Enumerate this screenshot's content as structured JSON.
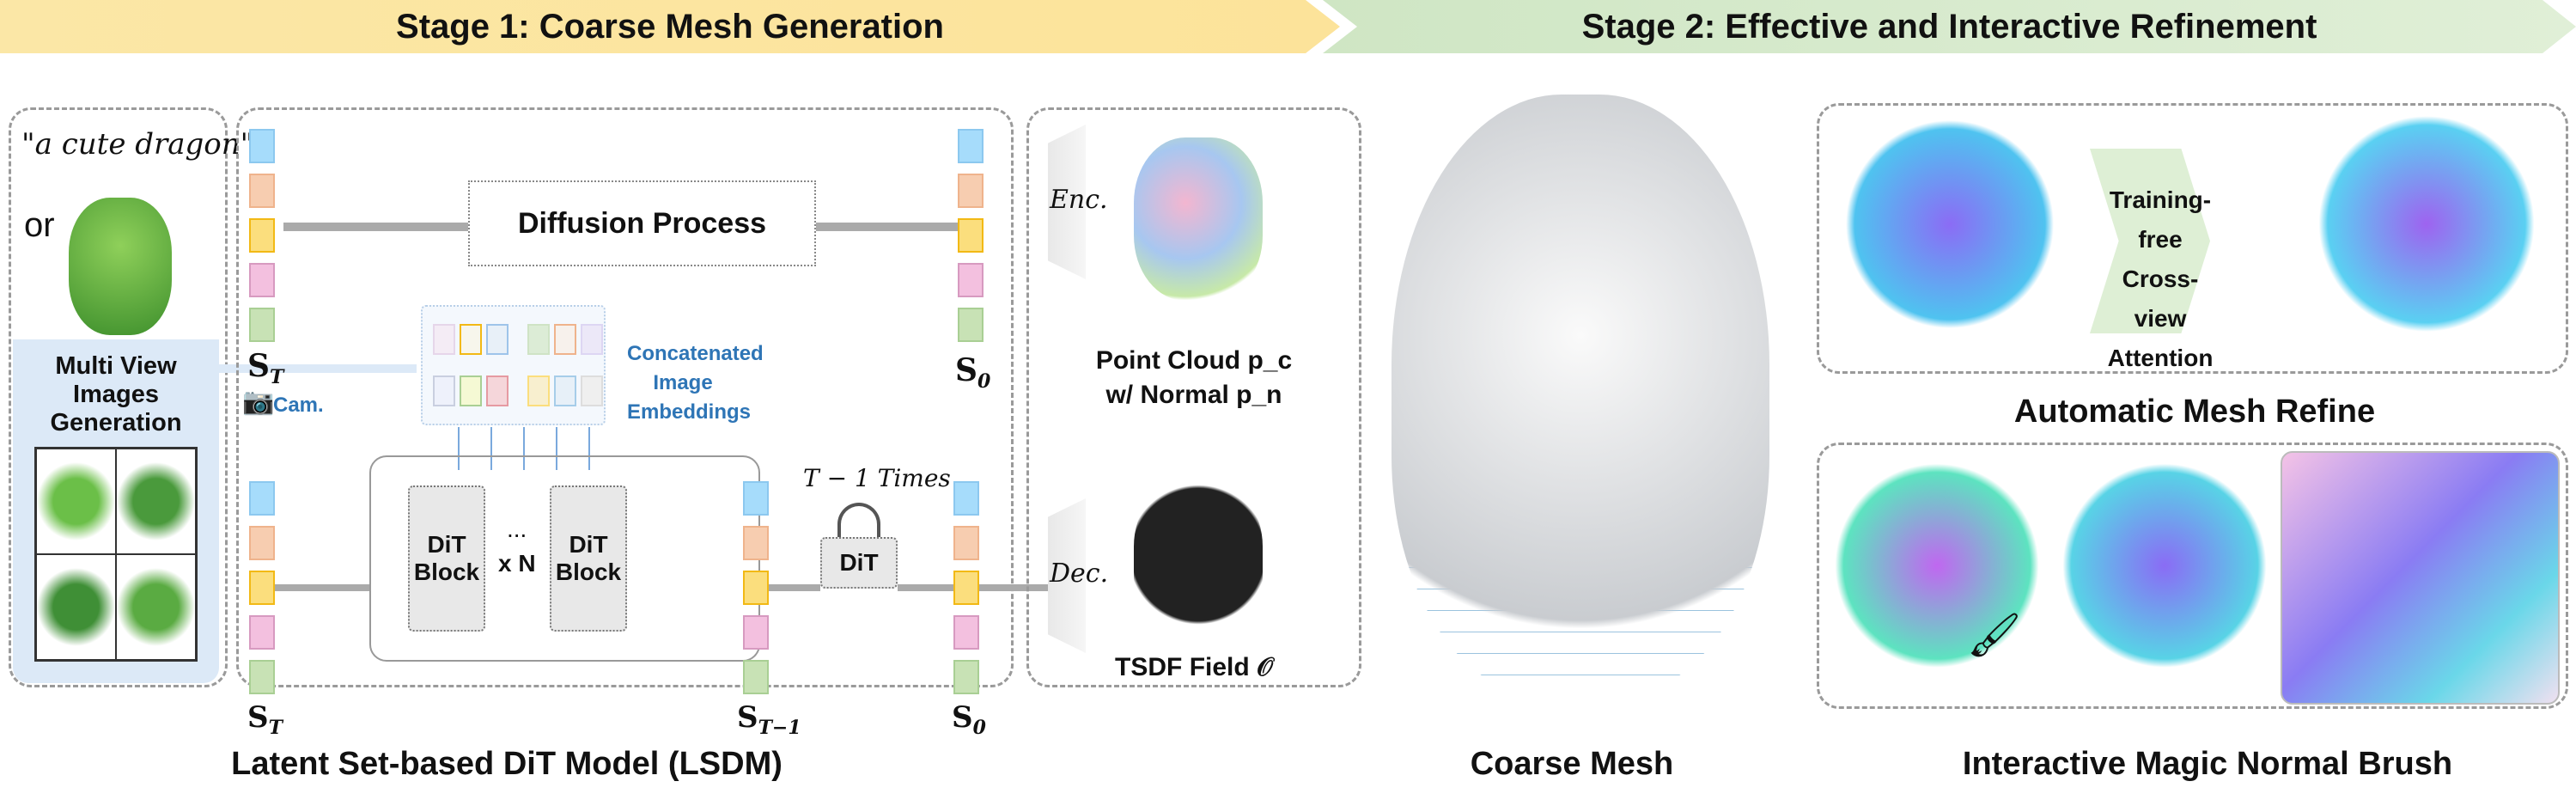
{
  "banners": {
    "stage1": "Stage 1: Coarse Mesh Generation",
    "stage2": "Stage 2: Effective and Interactive Refinement"
  },
  "input": {
    "prompt": "\"a cute dragon\"",
    "or": "or",
    "multiview": "Multi View Images Generation"
  },
  "lsdm": {
    "diffusion": "Diffusion Process",
    "embeddings": "Concatenated Image Embeddings",
    "cam": "Cam.",
    "dit_block": "DiT Block",
    "ellipsis": "...",
    "times_n": "x N",
    "dit": "DiT",
    "loop": "T − 1 Times",
    "s_t": "S",
    "s_t_sub": "T",
    "s_0": "S",
    "s_0_sub": "0",
    "s_t1": "S",
    "s_t1_sub": "T−1"
  },
  "codec": {
    "enc": "Enc.",
    "dec": "Dec.",
    "pc_line1": "Point Cloud p_c",
    "pc_line2": "w/ Normal p_n",
    "tsdf": "TSDF Field 𝒪"
  },
  "refine": {
    "attention": "Training-free Cross-view Attention",
    "auto_caption": "Automatic Mesh Refine"
  },
  "captions": {
    "lsdm": "Latent Set-based DiT Model (LSDM)",
    "coarse": "Coarse Mesh",
    "brush": "Interactive Magic Normal Brush"
  },
  "colors": {
    "stage1": "#fce39a",
    "stage2": "#d5e8c8",
    "accent_blue": "#2e75b6",
    "panel_blue": "#dce9f7"
  }
}
